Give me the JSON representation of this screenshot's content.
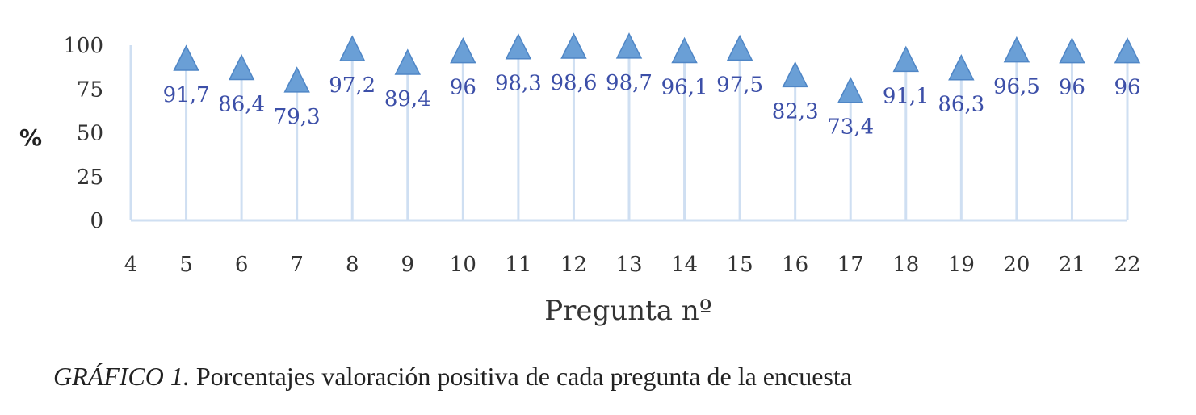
{
  "chart_data": {
    "type": "scatter",
    "ylabel": "%",
    "xlabel": "Pregunta nº",
    "xlim": [
      4,
      22
    ],
    "ylim": [
      0,
      100
    ],
    "x_ticks": [
      "4",
      "5",
      "6",
      "7",
      "8",
      "9",
      "10",
      "11",
      "12",
      "13",
      "14",
      "15",
      "16",
      "17",
      "18",
      "19",
      "20",
      "21",
      "22"
    ],
    "y_ticks": [
      "0",
      "25",
      "50",
      "75",
      "100"
    ],
    "grid": "vertical drop lines",
    "marker": "triangle",
    "marker_color": "#6a9fd6",
    "line_color": "#cfdff2",
    "label_color": "#3c4fa8",
    "x": [
      5,
      6,
      7,
      8,
      9,
      10,
      11,
      12,
      13,
      14,
      15,
      16,
      17,
      18,
      19,
      20,
      21,
      22
    ],
    "values": [
      91.7,
      86.4,
      79.3,
      97.2,
      89.4,
      96,
      98.3,
      98.6,
      98.7,
      96.1,
      97.5,
      82.3,
      73.4,
      91.1,
      86.3,
      96.5,
      96,
      96
    ],
    "data_labels": [
      "91,7",
      "86,4",
      "79,3",
      "97,2",
      "89,4",
      "96",
      "98,3",
      "98,6",
      "98,7",
      "96,1",
      "97,5",
      "82,3",
      "73,4",
      "91,1",
      "86,3",
      "96,5",
      "96",
      "96"
    ]
  },
  "caption": {
    "lead": "GRÁFICO 1.",
    "text": " Porcentajes valoración positiva de cada pregunta de la encuesta"
  }
}
